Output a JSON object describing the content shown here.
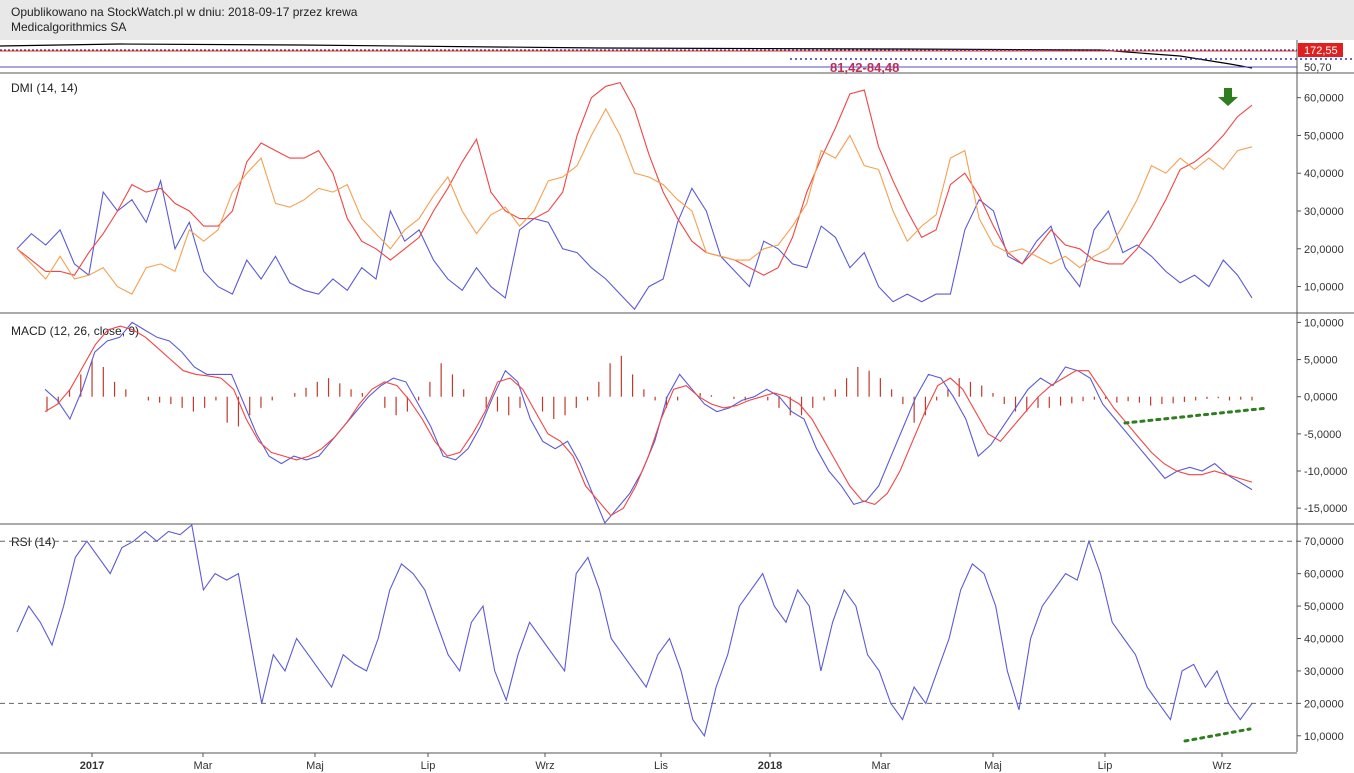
{
  "header": {
    "line1": "Opublikowano na StockWatch.pl w dniu: 2018-09-17 przez krewa",
    "line2": "Medicalgorithmics SA"
  },
  "price_strip": {
    "price_label": "172,55",
    "low_label": "50,70",
    "range_label": "81,42-84,48"
  },
  "x_axis": {
    "ticks": [
      {
        "label": "2017",
        "bold": true
      },
      {
        "label": "Mar",
        "bold": false
      },
      {
        "label": "Maj",
        "bold": false
      },
      {
        "label": "Lip",
        "bold": false
      },
      {
        "label": "Wrz",
        "bold": false
      },
      {
        "label": "Lis",
        "bold": false
      },
      {
        "label": "2018",
        "bold": true
      },
      {
        "label": "Mar",
        "bold": false
      },
      {
        "label": "Maj",
        "bold": false
      },
      {
        "label": "Lip",
        "bold": false
      },
      {
        "label": "Wrz",
        "bold": false
      }
    ]
  },
  "colors": {
    "blue": "#5b5bd6",
    "red": "#f04545",
    "orange": "#f5a050",
    "green": "#2e7d1e",
    "hist": "#c0392b"
  },
  "chart_data": [
    {
      "type": "line",
      "title": "DMI (14, 14)",
      "ylim": [
        3000,
        66000
      ],
      "yticks": [
        "60,0000",
        "50,0000",
        "40,0000",
        "30,0000",
        "20,0000",
        "10,0000"
      ],
      "series": [
        {
          "color": "blue",
          "values": [
            20000,
            24000,
            21000,
            25000,
            16000,
            13000,
            35000,
            30000,
            33000,
            27000,
            38000,
            20000,
            27000,
            14000,
            10000,
            8000,
            17000,
            12000,
            18000,
            11000,
            9000,
            8000,
            12000,
            9000,
            15000,
            12000,
            30000,
            22000,
            25000,
            17000,
            12000,
            9000,
            15000,
            10000,
            7000,
            25000,
            28000,
            27000,
            20000,
            19000,
            15000,
            12000,
            8000,
            4000,
            10000,
            12000,
            27000,
            36000,
            30000,
            18000,
            14000,
            10000,
            22000,
            20000,
            16000,
            15000,
            26000,
            23000,
            15000,
            19000,
            10000,
            6000,
            8000,
            6000,
            8000,
            8000,
            25000,
            33000,
            30000,
            18000,
            16000,
            22000,
            26000,
            15000,
            10000,
            25000,
            30000,
            19000,
            21000,
            18000,
            14000,
            11000,
            13000,
            10000,
            17000,
            13000,
            7000
          ]
        },
        {
          "color": "red",
          "values": [
            20000,
            17000,
            14000,
            14000,
            13000,
            19000,
            24000,
            30000,
            37000,
            35000,
            36000,
            32000,
            30000,
            26000,
            26000,
            30000,
            43000,
            48000,
            46000,
            44000,
            44000,
            46000,
            40000,
            28000,
            22000,
            20000,
            17000,
            20000,
            23000,
            30000,
            36000,
            43000,
            49000,
            35000,
            30000,
            28000,
            28000,
            30000,
            35000,
            50000,
            60000,
            63000,
            64000,
            57000,
            45000,
            35000,
            28000,
            22000,
            19000,
            18000,
            17000,
            15000,
            13000,
            15000,
            23000,
            35000,
            44000,
            52000,
            61000,
            62000,
            47000,
            38000,
            30000,
            23000,
            25000,
            37000,
            40000,
            34000,
            26000,
            19000,
            16000,
            20000,
            25000,
            21000,
            20000,
            17000,
            16000,
            16000,
            20000,
            26000,
            33000,
            41000,
            43000,
            46000,
            50000,
            55000,
            58000
          ]
        },
        {
          "color": "orange",
          "values": [
            20000,
            16000,
            12000,
            18000,
            12000,
            13000,
            15000,
            10000,
            8000,
            15000,
            16000,
            14000,
            25000,
            22000,
            25000,
            35000,
            40000,
            44000,
            32000,
            31000,
            33000,
            36000,
            35000,
            37000,
            28000,
            24000,
            20000,
            25000,
            28000,
            34000,
            39000,
            30000,
            24000,
            29000,
            31000,
            26000,
            30000,
            38000,
            39000,
            42000,
            50000,
            57000,
            50000,
            40000,
            39000,
            37000,
            33000,
            30000,
            19000,
            18000,
            17000,
            17000,
            20000,
            21000,
            26000,
            32000,
            46000,
            44000,
            50000,
            42000,
            41000,
            30000,
            22000,
            26000,
            29000,
            44000,
            46000,
            28000,
            21000,
            19000,
            20000,
            18000,
            16000,
            18000,
            15000,
            18000,
            20000,
            26000,
            33000,
            42000,
            40000,
            44000,
            41000,
            44000,
            41000,
            46000,
            47000
          ]
        }
      ],
      "annotations": [
        {
          "kind": "arrow-down",
          "color": "green"
        }
      ]
    },
    {
      "type": "bar",
      "title": "MACD (12, 26, close, 9)",
      "ylim": [
        -17000,
        11000
      ],
      "yticks": [
        "10,0000",
        "5,0000",
        "0,0000",
        "-5,0000",
        "-10,0000",
        "-15,0000"
      ],
      "histogram": [
        -2000,
        -1000,
        1000,
        3000,
        5000,
        4000,
        2000,
        1000,
        0,
        -500,
        -800,
        -1000,
        -1500,
        -2000,
        -1500,
        -500,
        -3500,
        -4000,
        -2500,
        -1500,
        -500,
        0,
        500,
        1200,
        2000,
        2500,
        1800,
        1000,
        500,
        0,
        -1500,
        -2500,
        -2000,
        -500,
        2000,
        4500,
        3000,
        1000,
        0,
        -1500,
        -2000,
        -2500,
        -1500,
        0,
        -2000,
        -3000,
        -2500,
        -1500,
        -500,
        2000,
        4500,
        5500,
        3000,
        1000,
        -500,
        -1500,
        -500,
        0,
        500,
        200,
        0,
        -300,
        -500,
        0,
        -500,
        -1500,
        -2500,
        -2500,
        -1500,
        -500,
        1000,
        2500,
        4000,
        3500,
        2500,
        1000,
        -1000,
        -3500,
        -2500,
        -500,
        1000,
        2500,
        2000,
        1500,
        500,
        -1000,
        -2000,
        -2000,
        -1500,
        -1500,
        -1200,
        -900,
        -600,
        -400,
        -300,
        -800,
        -600,
        -800,
        -1200,
        -1000,
        -900,
        -700,
        -500,
        -300,
        -200,
        -500,
        -400,
        -500
      ],
      "series": [
        {
          "color": "blue",
          "values": [
            1000,
            -500,
            -3000,
            1000,
            6000,
            7500,
            8000,
            10000,
            9000,
            8000,
            7500,
            6000,
            4000,
            3000,
            3000,
            3000,
            -1000,
            -5000,
            -8000,
            -9000,
            -8000,
            -8500,
            -8000,
            -6000,
            -4000,
            -2000,
            0,
            1500,
            2500,
            2000,
            -1000,
            -4000,
            -8000,
            -8500,
            -7000,
            -4000,
            0,
            3500,
            2000,
            -3000,
            -6000,
            -7000,
            -6000,
            -9000,
            -13000,
            -17000,
            -15000,
            -13000,
            -10000,
            -6000,
            0,
            3000,
            1000,
            -1000,
            -2000,
            -1500,
            -500,
            0,
            1000,
            0,
            -2000,
            -3000,
            -7000,
            -10000,
            -12000,
            -14500,
            -14000,
            -12000,
            -8000,
            -4000,
            0,
            3000,
            2500,
            0,
            -3000,
            -8000,
            -6500,
            -4000,
            -1500,
            1000,
            2500,
            1500,
            4000,
            3500,
            2500,
            -1000,
            -3000,
            -5000,
            -7000,
            -9000,
            -11000,
            -10000,
            -9500,
            -10000,
            -9000,
            -10500,
            -11500,
            -12500
          ]
        },
        {
          "color": "red",
          "values": [
            -2000,
            -1000,
            1000,
            4000,
            7000,
            9000,
            9500,
            9000,
            8000,
            6500,
            5000,
            3500,
            3000,
            2800,
            2500,
            1000,
            -3000,
            -6000,
            -7500,
            -8000,
            -8500,
            -8000,
            -7000,
            -5500,
            -3500,
            -1000,
            1000,
            2000,
            1500,
            -500,
            -3000,
            -6000,
            -8000,
            -7500,
            -5000,
            -2000,
            2000,
            2500,
            1000,
            -2000,
            -5000,
            -6000,
            -8000,
            -12000,
            -14000,
            -16000,
            -15000,
            -12000,
            -8000,
            -3000,
            1000,
            1500,
            0,
            -1000,
            -1500,
            -1200,
            -500,
            0,
            500,
            0,
            -1000,
            -3000,
            -6000,
            -9000,
            -12000,
            -14000,
            -14500,
            -13000,
            -10000,
            -6000,
            -2000,
            1500,
            2500,
            1000,
            -2000,
            -5000,
            -6000,
            -4000,
            -2000,
            0,
            1500,
            2500,
            3500,
            3500,
            1000,
            -1500,
            -3500,
            -5500,
            -7500,
            -9000,
            -10000,
            -10500,
            -10500,
            -10000,
            -10500,
            -11000,
            -11500
          ]
        }
      ],
      "annotations": [
        {
          "kind": "dotted-trendline",
          "color": "green"
        }
      ]
    },
    {
      "type": "line",
      "title": "RSI (14)",
      "ylim": [
        5000,
        75000
      ],
      "yticks": [
        "70,0000",
        "60,0000",
        "50,0000",
        "40,0000",
        "30,0000",
        "20,0000",
        "10,0000"
      ],
      "reference_lines": [
        70000,
        20000
      ],
      "series": [
        {
          "color": "blue",
          "values": [
            42000,
            50000,
            45000,
            38000,
            50000,
            65000,
            70000,
            65000,
            60000,
            68000,
            70000,
            73000,
            70000,
            73000,
            72000,
            75000,
            55000,
            60000,
            58000,
            60000,
            40000,
            20000,
            35000,
            30000,
            40000,
            35000,
            30000,
            25000,
            35000,
            32000,
            30000,
            40000,
            55000,
            63000,
            60000,
            55000,
            45000,
            35000,
            30000,
            45000,
            50000,
            30000,
            21000,
            35000,
            45000,
            40000,
            35000,
            30000,
            60000,
            65000,
            55000,
            40000,
            35000,
            30000,
            25000,
            35000,
            40000,
            30000,
            15000,
            10000,
            25000,
            35000,
            50000,
            55000,
            60000,
            50000,
            45000,
            55000,
            50000,
            30000,
            45000,
            55000,
            50000,
            35000,
            30000,
            20000,
            15000,
            25000,
            20000,
            30000,
            40000,
            55000,
            63000,
            60000,
            50000,
            30000,
            18000,
            40000,
            50000,
            55000,
            60000,
            58000,
            70000,
            60000,
            45000,
            40000,
            35000,
            25000,
            20000,
            15000,
            30000,
            32000,
            25000,
            30000,
            20000,
            15000,
            20000
          ]
        }
      ],
      "annotations": [
        {
          "kind": "dotted-trendline",
          "color": "green"
        }
      ]
    }
  ]
}
